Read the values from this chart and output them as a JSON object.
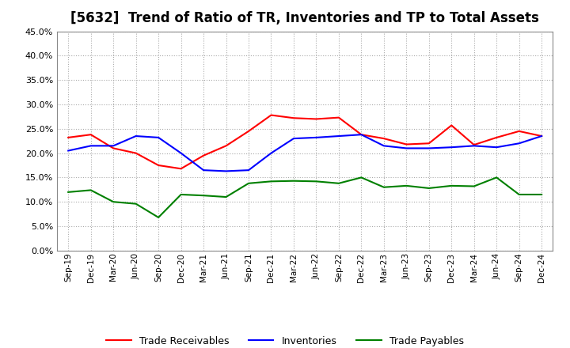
{
  "title": "[5632]  Trend of Ratio of TR, Inventories and TP to Total Assets",
  "ylim": [
    0.0,
    0.45
  ],
  "yticks": [
    0.0,
    0.05,
    0.1,
    0.15,
    0.2,
    0.25,
    0.3,
    0.35,
    0.4,
    0.45
  ],
  "x_labels": [
    "Sep-19",
    "Dec-19",
    "Mar-20",
    "Jun-20",
    "Sep-20",
    "Dec-20",
    "Mar-21",
    "Jun-21",
    "Sep-21",
    "Dec-21",
    "Mar-22",
    "Jun-22",
    "Sep-22",
    "Dec-22",
    "Mar-23",
    "Jun-23",
    "Sep-23",
    "Dec-23",
    "Mar-24",
    "Jun-24",
    "Sep-24",
    "Dec-24"
  ],
  "trade_receivables": [
    0.232,
    0.238,
    0.21,
    0.2,
    0.175,
    0.168,
    0.195,
    0.215,
    0.245,
    0.278,
    0.272,
    0.27,
    0.273,
    0.238,
    0.23,
    0.218,
    0.22,
    0.257,
    0.217,
    0.232,
    0.245,
    0.235
  ],
  "inventories": [
    0.205,
    0.215,
    0.215,
    0.235,
    0.232,
    0.2,
    0.165,
    0.163,
    0.165,
    0.2,
    0.23,
    0.232,
    0.235,
    0.238,
    0.215,
    0.21,
    0.21,
    0.212,
    0.215,
    0.212,
    0.22,
    0.235
  ],
  "trade_payables": [
    0.12,
    0.124,
    0.1,
    0.096,
    0.068,
    0.115,
    0.113,
    0.11,
    0.138,
    0.142,
    0.143,
    0.142,
    0.138,
    0.15,
    0.13,
    0.133,
    0.128,
    0.133,
    0.132,
    0.15,
    0.115,
    0.115
  ],
  "tr_color": "#FF0000",
  "inv_color": "#0000FF",
  "tp_color": "#008000",
  "legend_labels": [
    "Trade Receivables",
    "Inventories",
    "Trade Payables"
  ],
  "grid_color": "#AAAAAA",
  "background_color": "#FFFFFF",
  "title_fontsize": 12
}
